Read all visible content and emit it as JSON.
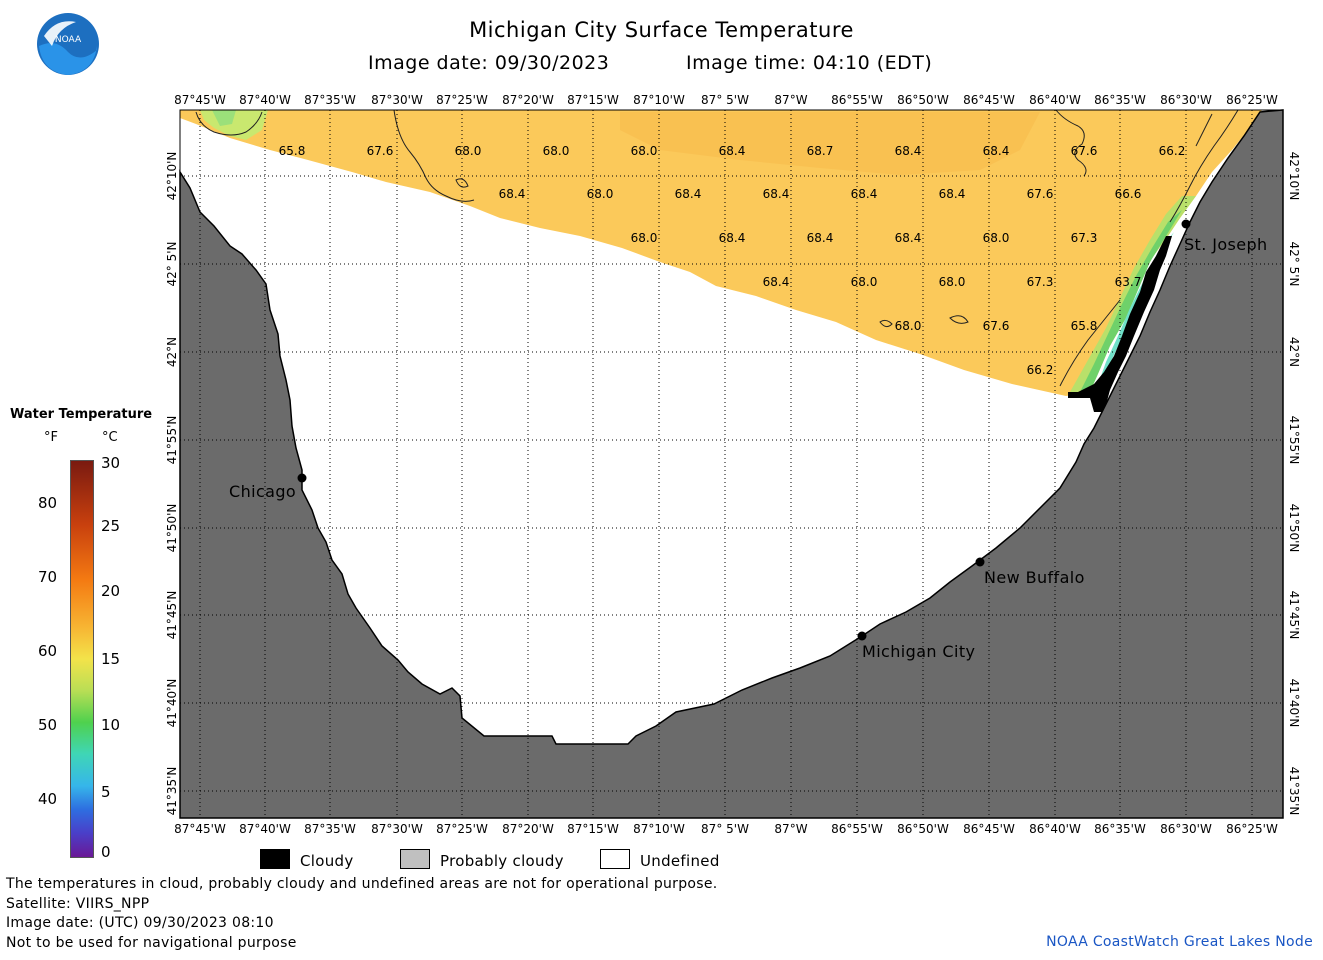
{
  "header": {
    "title": "Michigan City Surface Temperature",
    "image_date": "Image date: 09/30/2023",
    "image_time": "Image time: 04:10 (EDT)"
  },
  "logo": {
    "text": "NOAA"
  },
  "axes": {
    "longitudes": [
      "87°45'W",
      "87°40'W",
      "87°35'W",
      "87°30'W",
      "87°25'W",
      "87°20'W",
      "87°15'W",
      "87°10'W",
      "87° 5'W",
      "87°W",
      "86°55'W",
      "86°50'W",
      "86°45'W",
      "86°40'W",
      "86°35'W",
      "86°30'W",
      "86°25'W"
    ],
    "latitudes": [
      "42°10'N",
      "42° 5'N",
      "42°N",
      "41°55'N",
      "41°50'N",
      "41°45'N",
      "41°40'N",
      "41°35'N"
    ]
  },
  "cities": [
    {
      "name": "Chicago"
    },
    {
      "name": "St. Joseph"
    },
    {
      "name": "New Buffalo"
    },
    {
      "name": "Michigan City"
    }
  ],
  "temperature_readings": [
    "65.8",
    "67.6",
    "68.0",
    "68.0",
    "68.0",
    "68.4",
    "68.7",
    "68.4",
    "68.4",
    "67.6",
    "66.2",
    "68.4",
    "68.0",
    "68.4",
    "68.4",
    "68.4",
    "68.4",
    "67.6",
    "66.6",
    "68.0",
    "68.4",
    "68.4",
    "68.4",
    "68.0",
    "67.3",
    "68.4",
    "68.0",
    "68.0",
    "67.3",
    "63.7",
    "68.0",
    "67.6",
    "65.8",
    "66.2"
  ],
  "color_scale": {
    "title": "Water Temperature",
    "unit_f": "°F",
    "unit_c": "°C",
    "f_labels": [
      "80",
      "70",
      "60",
      "50",
      "40"
    ],
    "c_labels": [
      "30",
      "25",
      "20",
      "15",
      "10",
      "5",
      "0"
    ],
    "range_c": [
      0,
      30
    ]
  },
  "legend": {
    "cloudy": "Cloudy",
    "probably_cloudy": "Probably cloudy",
    "undefined": "Undefined"
  },
  "notes": {
    "disclaimer": "The temperatures in cloud, probably cloudy and undefined areas are not for operational purpose.",
    "satellite": "Satellite: VIIRS_NPP",
    "utc_date": "Image date: (UTC) 09/30/2023  08:10",
    "navigation": "Not to be used for navigational purpose"
  },
  "credit": "NOAA CoastWatch Great Lakes Node",
  "colors": {
    "land": "#6b6b6b",
    "warm_water": "#fbc95a",
    "cloud": "#000000",
    "probably_cloudy": "#c0c0c0",
    "undefined": "#ffffff",
    "credit_blue": "#1a56c4"
  }
}
